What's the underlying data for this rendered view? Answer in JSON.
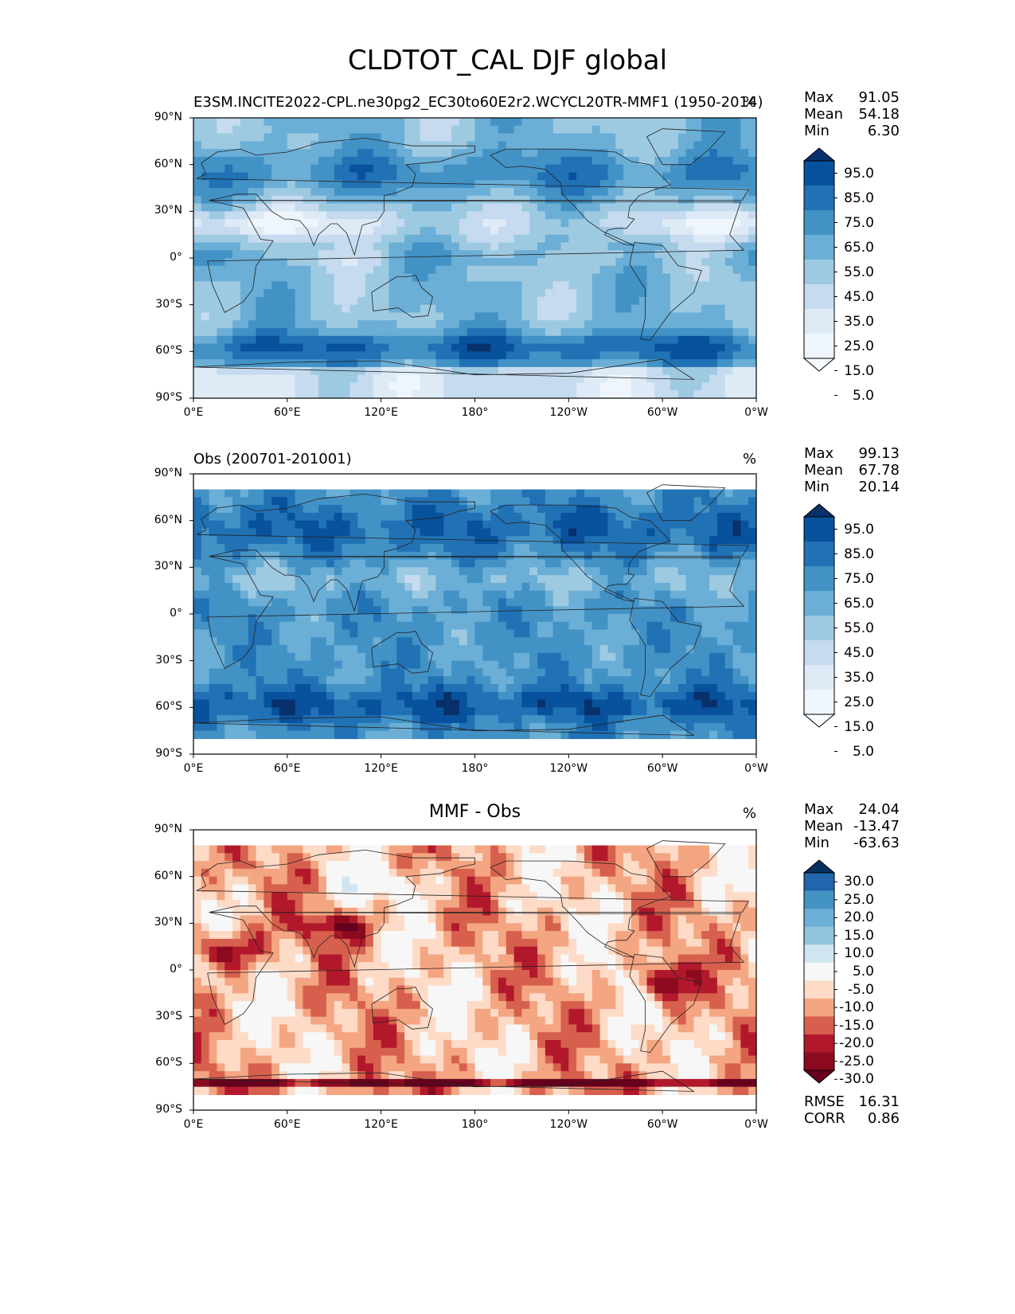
{
  "title": "CLDTOT_CAL DJF global",
  "lat_ticks": [
    "90°N",
    "60°N",
    "30°N",
    "0°",
    "30°S",
    "60°S",
    "90°S"
  ],
  "lon_ticks": [
    "0°E",
    "60°E",
    "120°E",
    "180°",
    "120°W",
    "60°W",
    "0°W"
  ],
  "panels": [
    {
      "id": "model",
      "left_title": "E3SM.INCITE2022-CPL.ne30pg2_EC30to60E2r2.WCYCL20TR-MMF1 (1950-2014)",
      "center_title": "",
      "units": "%",
      "stats": [
        {
          "label": "Max",
          "value": "91.05"
        },
        {
          "label": "Mean",
          "value": "54.18"
        },
        {
          "label": "Min",
          "value": "6.30"
        }
      ],
      "colorbar": {
        "ticks": [
          "95.0",
          "85.0",
          "75.0",
          "65.0",
          "55.0",
          "45.0",
          "35.0",
          "25.0",
          "15.0",
          "5.0"
        ],
        "colors": [
          "#08306b",
          "#08519c",
          "#2171b5",
          "#4292c6",
          "#6baed6",
          "#9ecae1",
          "#c6dbef",
          "#deebf7",
          "#eef5fc",
          "#f7fbff"
        ]
      },
      "extra_stats": []
    },
    {
      "id": "obs",
      "left_title": "Obs (200701-201001)",
      "center_title": "",
      "units": "%",
      "stats": [
        {
          "label": "Max",
          "value": "99.13"
        },
        {
          "label": "Mean",
          "value": "67.78"
        },
        {
          "label": "Min",
          "value": "20.14"
        }
      ],
      "colorbar": {
        "ticks": [
          "95.0",
          "85.0",
          "75.0",
          "65.0",
          "55.0",
          "45.0",
          "35.0",
          "25.0",
          "15.0",
          "5.0"
        ],
        "colors": [
          "#08306b",
          "#08519c",
          "#2171b5",
          "#4292c6",
          "#6baed6",
          "#9ecae1",
          "#c6dbef",
          "#deebf7",
          "#eef5fc",
          "#f7fbff"
        ]
      },
      "extra_stats": []
    },
    {
      "id": "diff",
      "left_title": "",
      "center_title": "MMF - Obs",
      "units": "%",
      "stats": [
        {
          "label": "Max",
          "value": "24.04"
        },
        {
          "label": "Mean",
          "value": "-13.47"
        },
        {
          "label": "Min",
          "value": "-63.63"
        }
      ],
      "colorbar": {
        "ticks": [
          "30.0",
          "25.0",
          "20.0",
          "15.0",
          "10.0",
          "5.0",
          "-5.0",
          "-10.0",
          "-15.0",
          "-20.0",
          "-25.0",
          "-30.0"
        ],
        "colors": [
          "#053061",
          "#2166ac",
          "#4393c3",
          "#6baed6",
          "#92c5de",
          "#d1e5f0",
          "#f7f7f7",
          "#fddbc7",
          "#f4a582",
          "#d6604d",
          "#b2182b",
          "#8b0a1f",
          "#67001f"
        ]
      },
      "extra_stats": [
        {
          "label": "RMSE",
          "value": "16.31"
        },
        {
          "label": "CORR",
          "value": "0.86"
        }
      ]
    }
  ]
}
